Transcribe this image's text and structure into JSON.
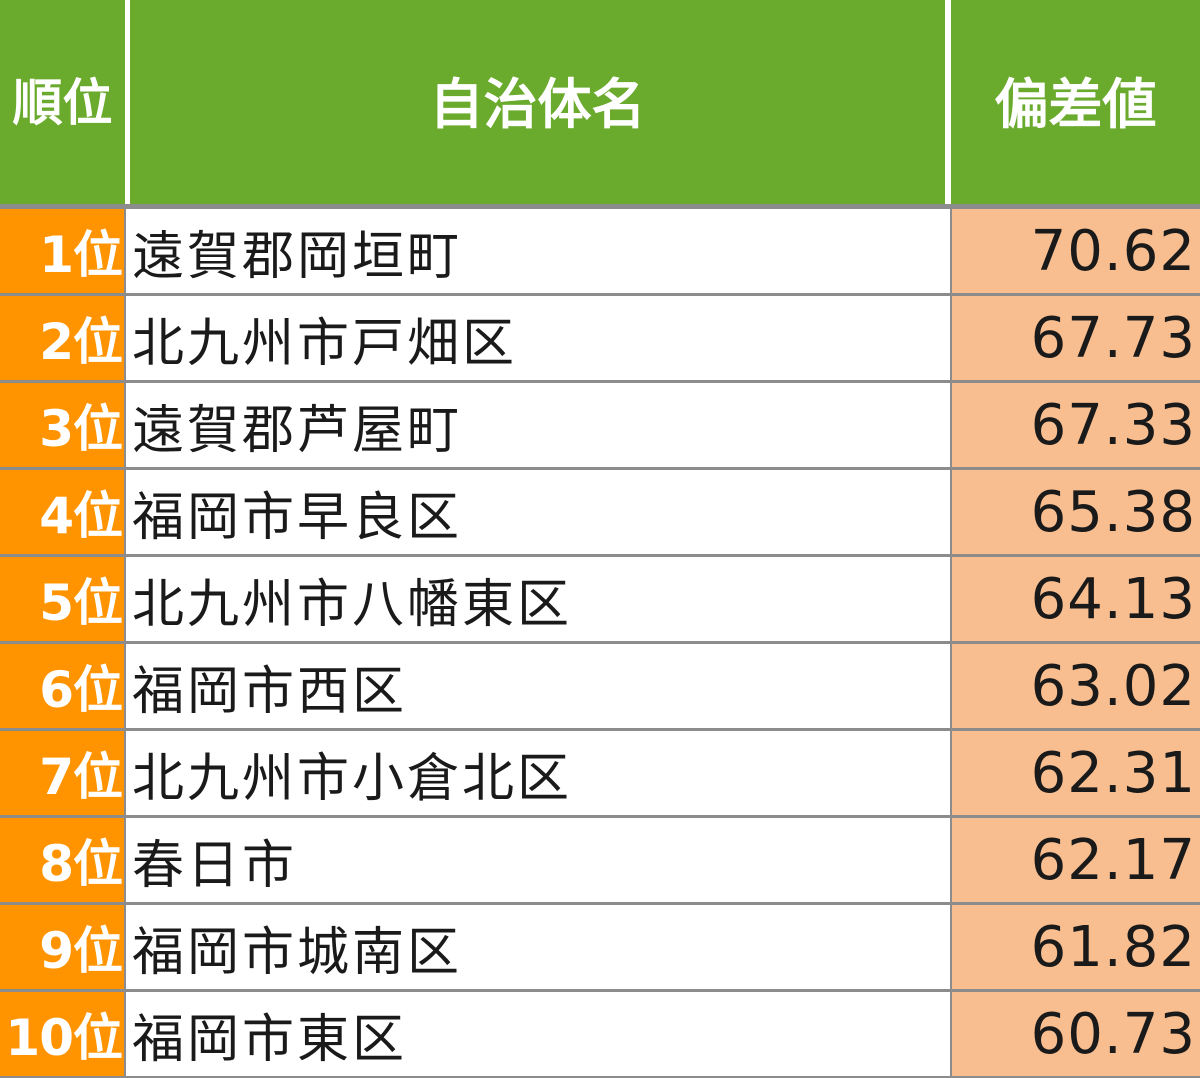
{
  "headers": {
    "rank": "順位",
    "name": "自治体名",
    "score": "偏差値"
  },
  "rows": [
    {
      "rank": "1位",
      "name": "遠賀郡岡垣町",
      "score": "70.62"
    },
    {
      "rank": "2位",
      "name": "北九州市戸畑区",
      "score": "67.73"
    },
    {
      "rank": "3位",
      "name": "遠賀郡芦屋町",
      "score": "67.33"
    },
    {
      "rank": "4位",
      "name": "福岡市早良区",
      "score": "65.38"
    },
    {
      "rank": "5位",
      "name": "北九州市八幡東区",
      "score": "64.13"
    },
    {
      "rank": "6位",
      "name": "福岡市西区",
      "score": "63.02"
    },
    {
      "rank": "7位",
      "name": "北九州市小倉北区",
      "score": "62.31"
    },
    {
      "rank": "8位",
      "name": "春日市",
      "score": "62.17"
    },
    {
      "rank": "9位",
      "name": "福岡市城南区",
      "score": "61.82"
    },
    {
      "rank": "10位",
      "name": "福岡市東区",
      "score": "60.73"
    }
  ],
  "colors": {
    "header_bg": "#6aaa2c",
    "rank_bg": "#ff9400",
    "score_bg": "#f8be90",
    "divider": "#8c8c8c"
  }
}
